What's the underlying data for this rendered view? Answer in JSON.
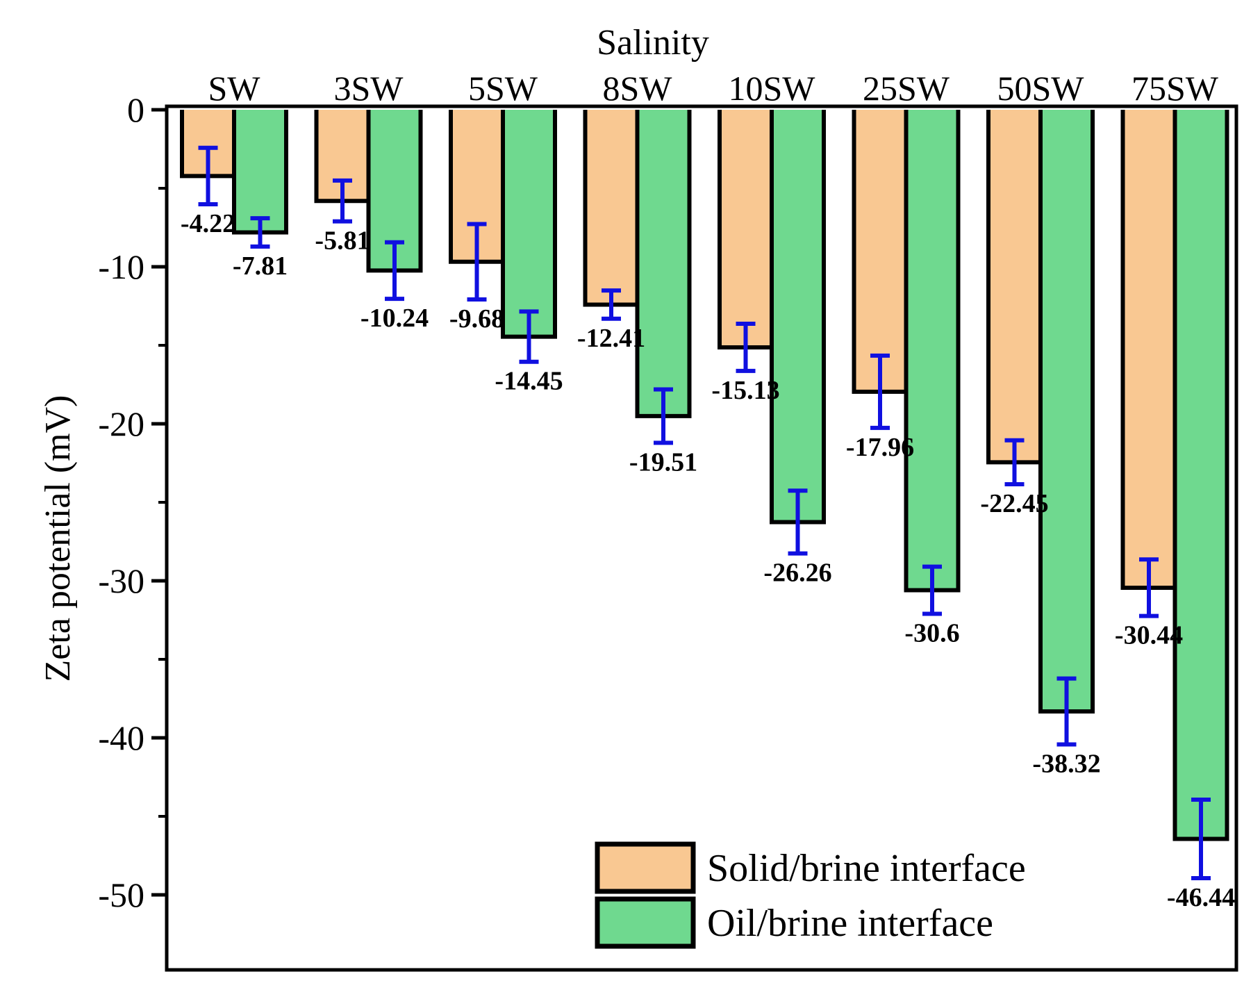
{
  "chart_data": {
    "type": "bar",
    "title": "",
    "top_axis_label": "Salinity",
    "xlabel": "",
    "ylabel": "Zeta potential (mV)",
    "ylim": [
      -55,
      0
    ],
    "yticks": [
      0,
      -10,
      -20,
      -30,
      -40,
      -50
    ],
    "ytick_labels": [
      "0",
      "-10",
      "-20",
      "-30",
      "-40",
      "-50"
    ],
    "categories": [
      "SW",
      "3SW",
      "5SW",
      "8SW",
      "10SW",
      "25SW",
      "50SW",
      "75SW"
    ],
    "legend_position": "bottom-right",
    "series": [
      {
        "name": "Solid/brine interface",
        "color": "#F9C892",
        "values": [
          -4.22,
          -5.81,
          -9.68,
          -12.41,
          -15.13,
          -17.96,
          -22.45,
          -30.44
        ],
        "labels": [
          "-4.22",
          "-5.81",
          "-9.68",
          "-12.41",
          "-15.13",
          "-17.96",
          "-22.45",
          "-30.44"
        ],
        "errors": [
          1.8,
          1.3,
          2.4,
          0.9,
          1.5,
          2.3,
          1.4,
          1.8
        ]
      },
      {
        "name": "Oil/brine interface",
        "color": "#6FD98F",
        "values": [
          -7.81,
          -10.24,
          -14.45,
          -19.51,
          -26.26,
          -30.6,
          -38.32,
          -46.44
        ],
        "labels": [
          "-7.81",
          "-10.24",
          "-14.45",
          "-19.51",
          "-26.26",
          "-30.6",
          "-38.32",
          "-46.44"
        ],
        "errors": [
          0.9,
          1.8,
          1.6,
          1.7,
          2.0,
          1.5,
          2.1,
          2.5
        ]
      }
    ],
    "error_bar_color": "#1010E0"
  }
}
